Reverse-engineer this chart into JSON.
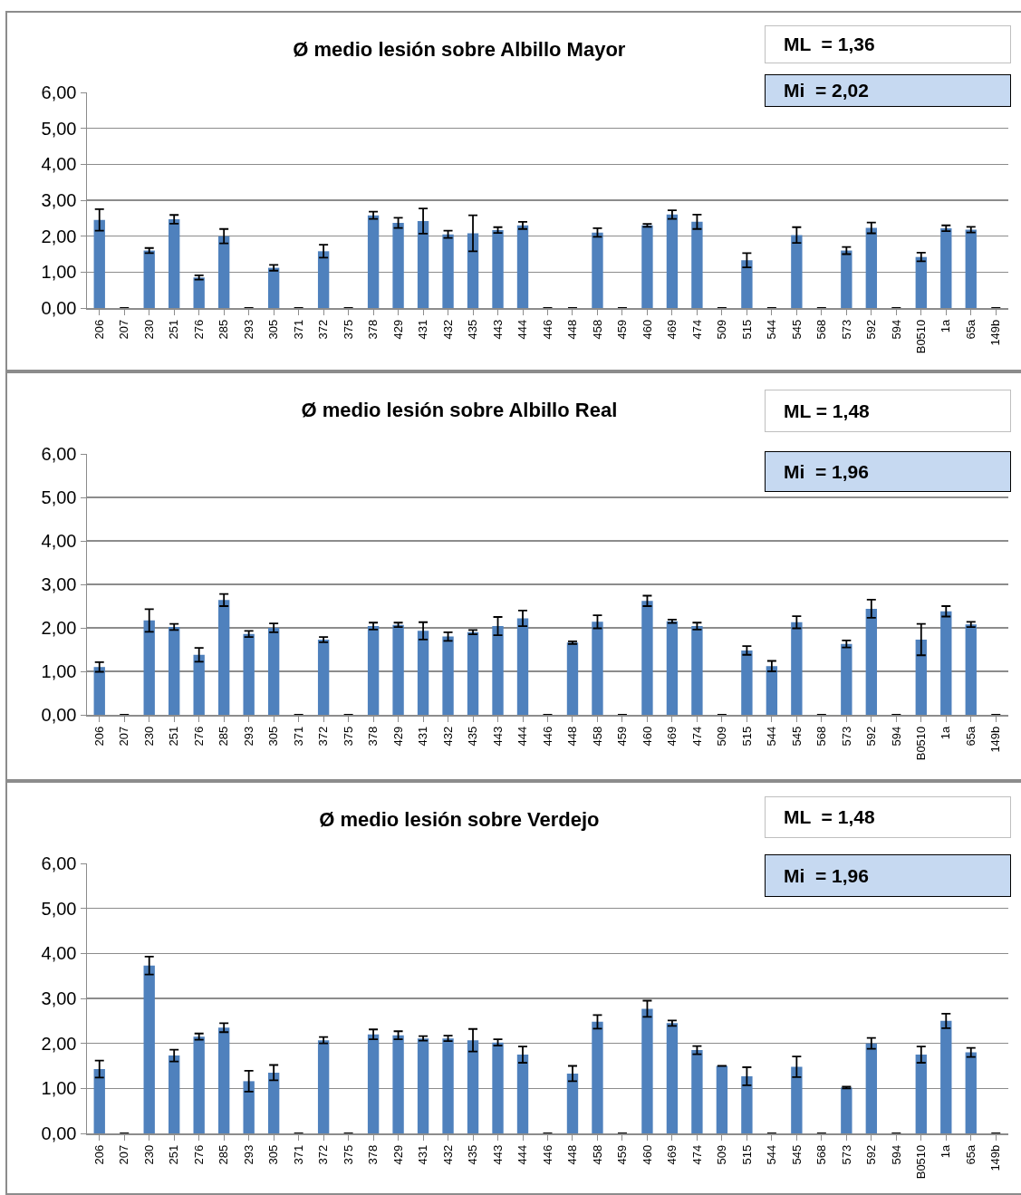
{
  "chart_data": [
    {
      "type": "bar",
      "title": "Ø medio lesión sobre Albillo Mayor",
      "annotations": [
        "ML  = 1,36",
        "Mi  = 2,02"
      ],
      "categories": [
        "206",
        "207",
        "230",
        "251",
        "276",
        "285",
        "293",
        "305",
        "371",
        "372",
        "375",
        "378",
        "429",
        "431",
        "432",
        "435",
        "443",
        "444",
        "446",
        "448",
        "458",
        "459",
        "460",
        "469",
        "474",
        "509",
        "515",
        "544",
        "545",
        "568",
        "573",
        "592",
        "594",
        "B0510",
        "1a",
        "65a",
        "149b"
      ],
      "values": [
        2.45,
        0,
        1.6,
        2.47,
        0.85,
        2.0,
        0,
        1.12,
        0,
        1.58,
        0,
        2.58,
        2.37,
        2.42,
        2.05,
        2.08,
        2.17,
        2.3,
        0,
        0,
        2.1,
        0,
        2.3,
        2.6,
        2.4,
        0,
        1.33,
        0,
        2.03,
        0,
        1.6,
        2.23,
        0,
        1.42,
        2.22,
        2.18,
        0
      ],
      "errors": [
        0.3,
        null,
        0.07,
        0.12,
        0.06,
        0.2,
        null,
        0.08,
        null,
        0.18,
        null,
        0.1,
        0.14,
        0.35,
        0.1,
        0.5,
        0.08,
        0.1,
        null,
        null,
        0.12,
        null,
        0.04,
        0.12,
        0.2,
        null,
        0.2,
        null,
        0.22,
        null,
        0.1,
        0.15,
        null,
        0.12,
        0.08,
        0.08,
        null
      ],
      "color": "#4f81bd",
      "ylim": [
        0,
        6
      ],
      "yticks": [
        {
          "value": 0,
          "label": "0,00"
        },
        {
          "value": 1,
          "label": "1,00"
        },
        {
          "value": 2,
          "label": "2,00"
        },
        {
          "value": 3,
          "label": "3,00"
        },
        {
          "value": 4,
          "label": "4,00"
        },
        {
          "value": 5,
          "label": "5,00"
        },
        {
          "value": 6,
          "label": "6,00"
        }
      ],
      "grid": "y"
    },
    {
      "type": "bar",
      "title": "Ø medio lesión sobre Albillo Real",
      "annotations": [
        "ML = 1,48",
        "Mi  = 1,96"
      ],
      "categories": [
        "206",
        "207",
        "230",
        "251",
        "276",
        "285",
        "293",
        "305",
        "371",
        "372",
        "375",
        "378",
        "429",
        "431",
        "432",
        "435",
        "443",
        "444",
        "446",
        "448",
        "458",
        "459",
        "460",
        "469",
        "474",
        "509",
        "515",
        "544",
        "545",
        "568",
        "573",
        "592",
        "594",
        "B0510",
        "1a",
        "65a",
        "149b"
      ],
      "values": [
        1.1,
        0,
        2.17,
        2.02,
        1.38,
        2.64,
        1.86,
        2.0,
        0,
        1.73,
        0,
        2.04,
        2.07,
        1.93,
        1.8,
        1.9,
        2.04,
        2.22,
        0,
        1.66,
        2.14,
        0,
        2.62,
        2.15,
        2.04,
        0,
        1.48,
        1.12,
        2.13,
        0,
        1.63,
        2.44,
        0,
        1.73,
        2.38,
        2.08,
        0
      ],
      "errors": [
        0.11,
        null,
        0.26,
        0.07,
        0.16,
        0.14,
        0.07,
        0.1,
        null,
        0.06,
        null,
        0.08,
        0.05,
        0.2,
        0.1,
        0.05,
        0.21,
        0.18,
        null,
        0.03,
        0.15,
        null,
        0.12,
        0.04,
        0.08,
        null,
        0.1,
        0.12,
        0.14,
        null,
        0.08,
        0.21,
        null,
        0.36,
        0.12,
        0.06,
        null
      ],
      "color": "#4f81bd",
      "ylim": [
        0,
        6
      ],
      "yticks": [
        {
          "value": 0,
          "label": "0,00"
        },
        {
          "value": 1,
          "label": "1,00"
        },
        {
          "value": 2,
          "label": "2,00"
        },
        {
          "value": 3,
          "label": "3,00"
        },
        {
          "value": 4,
          "label": "4,00"
        },
        {
          "value": 5,
          "label": "5,00"
        },
        {
          "value": 6,
          "label": "6,00"
        }
      ],
      "grid": "y"
    },
    {
      "type": "bar",
      "title": "Ø medio lesión sobre Verdejo",
      "annotations": [
        "ML  = 1,48",
        "Mi  = 1,96"
      ],
      "categories": [
        "206",
        "207",
        "230",
        "251",
        "276",
        "285",
        "293",
        "305",
        "371",
        "372",
        "375",
        "378",
        "429",
        "431",
        "432",
        "435",
        "443",
        "444",
        "446",
        "448",
        "458",
        "459",
        "460",
        "469",
        "474",
        "509",
        "515",
        "544",
        "545",
        "568",
        "573",
        "592",
        "594",
        "B0510",
        "1a",
        "65a",
        "149b"
      ],
      "values": [
        1.43,
        0,
        3.73,
        1.73,
        2.15,
        2.35,
        1.16,
        1.35,
        0,
        2.07,
        0,
        2.2,
        2.18,
        2.11,
        2.11,
        2.07,
        2.02,
        1.75,
        0,
        1.33,
        2.48,
        0,
        2.77,
        2.45,
        1.85,
        1.5,
        1.27,
        0,
        1.48,
        0,
        1.02,
        2.0,
        0,
        1.75,
        2.5,
        1.8,
        0
      ],
      "errors": [
        0.19,
        null,
        0.2,
        0.13,
        0.07,
        0.1,
        0.23,
        0.17,
        null,
        0.07,
        null,
        0.11,
        0.09,
        0.05,
        0.06,
        0.25,
        0.07,
        0.18,
        null,
        0.17,
        0.15,
        null,
        0.18,
        0.06,
        0.09,
        null,
        0.2,
        null,
        0.23,
        null,
        0.02,
        0.12,
        null,
        0.18,
        0.16,
        0.1,
        null
      ],
      "color": "#4f81bd",
      "ylim": [
        0,
        6
      ],
      "yticks": [
        {
          "value": 0,
          "label": "0,00"
        },
        {
          "value": 1,
          "label": "1,00"
        },
        {
          "value": 2,
          "label": "2,00"
        },
        {
          "value": 3,
          "label": "3,00"
        },
        {
          "value": 4,
          "label": "4,00"
        },
        {
          "value": 5,
          "label": "5,00"
        },
        {
          "value": 6,
          "label": "6,00"
        }
      ],
      "grid": "y"
    }
  ]
}
